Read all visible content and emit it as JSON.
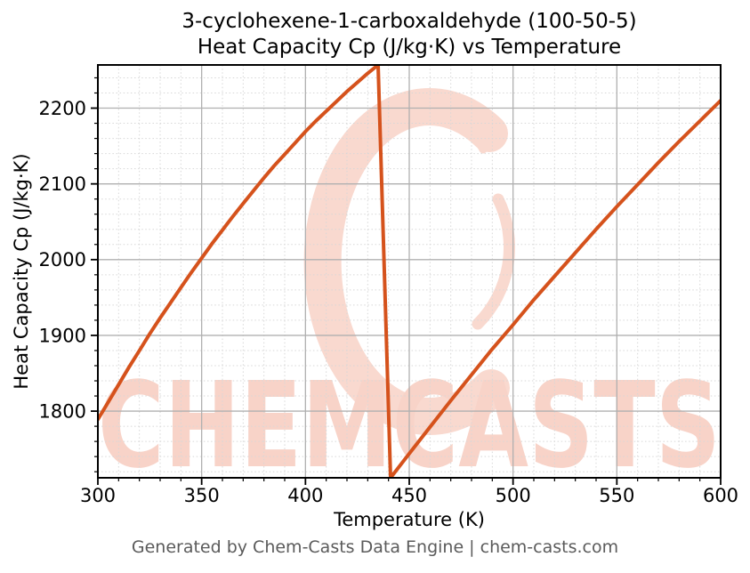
{
  "chart_data": {
    "type": "line",
    "title_lines": [
      "3-cyclohexene-1-carboxaldehyde (100-50-5)",
      "Heat Capacity Cp (J/kg·K) vs Temperature"
    ],
    "xlabel": "Temperature (K)",
    "ylabel": "Heat Capacity Cp (J/kg·K)",
    "xlim": [
      300,
      600
    ],
    "ylim": [
      1712,
      2257
    ],
    "x_major_ticks": [
      300,
      350,
      400,
      450,
      500,
      550,
      600
    ],
    "y_major_ticks": [
      1800,
      1900,
      2000,
      2100,
      2200
    ],
    "x_minor_step": 10,
    "y_minor_step": 20,
    "grid": {
      "major": "solid",
      "minor": "dashed",
      "major_color": "#b0b0b0",
      "minor_color": "#d7d7d7"
    },
    "line_color": "#d5521c",
    "line_width": 4,
    "series": [
      {
        "name": "Heat Capacity Cp (J/kg·K)",
        "points": [
          [
            300,
            1789
          ],
          [
            305,
            1812
          ],
          [
            310,
            1835
          ],
          [
            315,
            1858
          ],
          [
            320,
            1880
          ],
          [
            325,
            1902
          ],
          [
            330,
            1923
          ],
          [
            335,
            1943
          ],
          [
            340,
            1963
          ],
          [
            345,
            1983
          ],
          [
            350,
            2002
          ],
          [
            355,
            2021
          ],
          [
            360,
            2039
          ],
          [
            365,
            2057
          ],
          [
            370,
            2074
          ],
          [
            375,
            2091
          ],
          [
            380,
            2108
          ],
          [
            385,
            2124
          ],
          [
            390,
            2139
          ],
          [
            395,
            2154
          ],
          [
            400,
            2169
          ],
          [
            405,
            2183
          ],
          [
            410,
            2196
          ],
          [
            415,
            2209
          ],
          [
            420,
            2222
          ],
          [
            425,
            2234
          ],
          [
            430,
            2246
          ],
          [
            435,
            2257
          ],
          [
            441,
            1712
          ],
          [
            450,
            1744
          ],
          [
            460,
            1779
          ],
          [
            470,
            1814
          ],
          [
            480,
            1848
          ],
          [
            490,
            1882
          ],
          [
            500,
            1914
          ],
          [
            510,
            1947
          ],
          [
            520,
            1978
          ],
          [
            530,
            2009
          ],
          [
            540,
            2040
          ],
          [
            550,
            2070
          ],
          [
            560,
            2099
          ],
          [
            570,
            2128
          ],
          [
            580,
            2156
          ],
          [
            590,
            2183
          ],
          [
            600,
            2210
          ]
        ]
      }
    ]
  },
  "watermark": {
    "text": "CHEMCASTS",
    "logo": "chemcasts-crescent-swirl",
    "text_color": "#f8d3c8",
    "logo_color": "#f9d9cf"
  },
  "footer": {
    "text": "Generated by Chem-Casts Data Engine | chem-casts.com",
    "color": "#5b5b5b"
  }
}
